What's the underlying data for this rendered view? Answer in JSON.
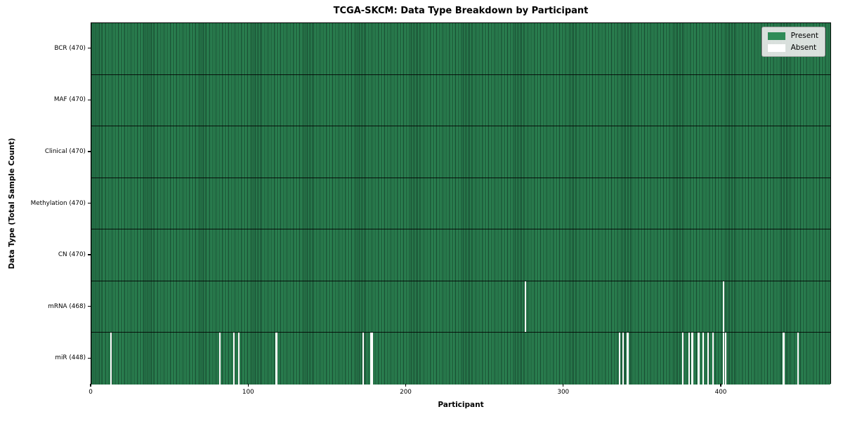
{
  "figure": {
    "title": "TCGA-SKCM: Data Type Breakdown by Participant"
  },
  "chart_data": {
    "type": "heatmap",
    "title": "TCGA-SKCM: Data Type Breakdown by Participant",
    "xlabel": "Participant",
    "ylabel": "Data Type (Total Sample Count)",
    "n_participants": 470,
    "x_ticks": [
      0,
      100,
      200,
      300,
      400
    ],
    "grid": "row-separators-only",
    "legend": {
      "position": "upper-right",
      "entries": [
        {
          "label": "Present",
          "color": "#2e8b57"
        },
        {
          "label": "Absent",
          "color": "#ffffff"
        }
      ]
    },
    "colors": {
      "present": "#2e8b57",
      "cell_edge": "#14402a",
      "absent": "#ffffff",
      "row_separator": "#000000"
    },
    "rows": [
      {
        "label": "BCR (470)",
        "data_type": "BCR",
        "present_count": 470,
        "absent_participants": []
      },
      {
        "label": "MAF (470)",
        "data_type": "MAF",
        "present_count": 470,
        "absent_participants": []
      },
      {
        "label": "Clinical (470)",
        "data_type": "Clinical",
        "present_count": 470,
        "absent_participants": []
      },
      {
        "label": "Methylation (470)",
        "data_type": "Methylation",
        "present_count": 470,
        "absent_participants": []
      },
      {
        "label": "CN (470)",
        "data_type": "CN",
        "present_count": 470,
        "absent_participants": []
      },
      {
        "label": "mRNA (468)",
        "data_type": "mRNA",
        "present_count": 468,
        "absent_participants": [
          275,
          401
        ]
      },
      {
        "label": "miR (448)",
        "data_type": "miR",
        "present_count": 448,
        "absent_participants": [
          12,
          81,
          90,
          93,
          117,
          172,
          177,
          178,
          335,
          337,
          340,
          375,
          379,
          381,
          385,
          388,
          391,
          394,
          401,
          402,
          439,
          448
        ]
      }
    ]
  }
}
